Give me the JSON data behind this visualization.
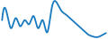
{
  "values": [
    0.5,
    0.7,
    0.3,
    0.55,
    0.35,
    0.5,
    0.4,
    0.6,
    0.3,
    0.5,
    0.2,
    0.8,
    0.95,
    0.75,
    0.65,
    0.55,
    0.45,
    0.35,
    0.25,
    0.15,
    0.1,
    0.08,
    0.12,
    0.18
  ],
  "line_color": "#1a7abf",
  "linewidth": 1.3,
  "background_color": "#ffffff"
}
